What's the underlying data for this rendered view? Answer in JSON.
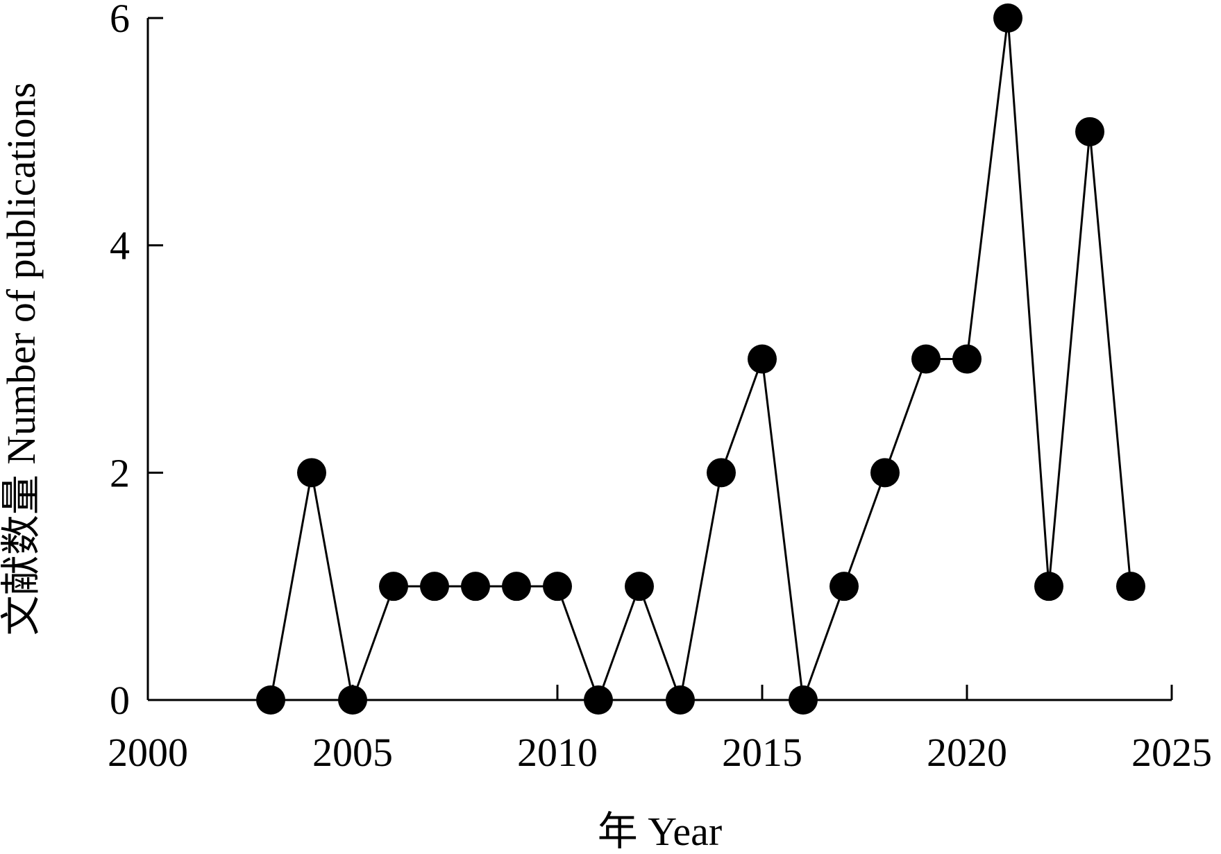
{
  "chart_data": {
    "type": "line",
    "title": "",
    "xlabel": "年 Year",
    "ylabel": "文献数量 Number of publications",
    "xlim": [
      2000,
      2025
    ],
    "ylim": [
      0,
      6
    ],
    "x_ticks": [
      2000,
      2005,
      2010,
      2015,
      2020,
      2025
    ],
    "y_ticks": [
      0,
      2,
      4,
      6
    ],
    "grid": false,
    "legend": "none",
    "marker": "filled-circle",
    "series": [
      {
        "x": [
          2003,
          2004,
          2005,
          2006,
          2007,
          2008,
          2009,
          2010,
          2011,
          2012,
          2013,
          2014,
          2015,
          2016,
          2017,
          2018,
          2019,
          2020,
          2021,
          2022,
          2023,
          2024
        ],
        "y": [
          0,
          2,
          0,
          1,
          1,
          1,
          1,
          1,
          0,
          1,
          0,
          2,
          3,
          0,
          1,
          2,
          3,
          3,
          6,
          1,
          5,
          1
        ],
        "color": "#000000"
      }
    ]
  }
}
